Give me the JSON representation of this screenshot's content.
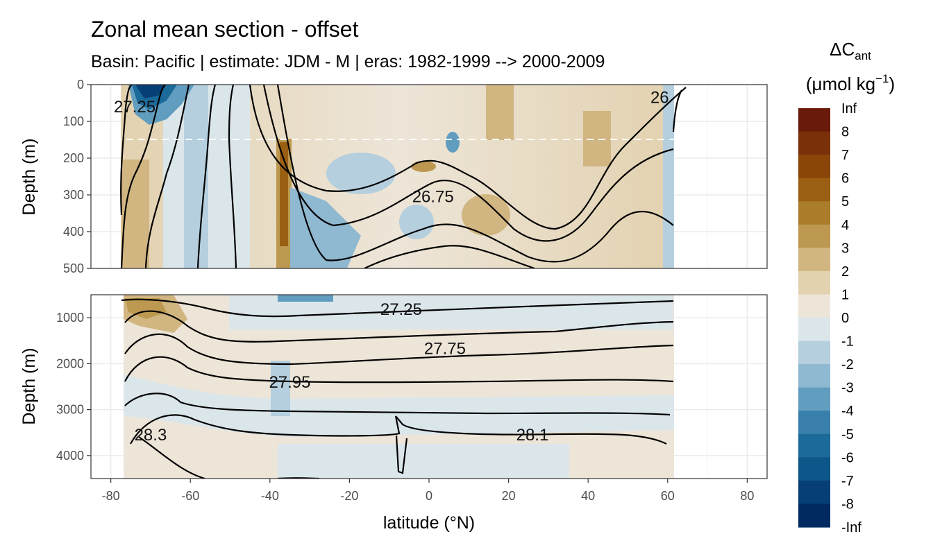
{
  "chart_data": {
    "type": "heatmap",
    "title": "Zonal mean section - offset",
    "subtitle": "Basin: Pacific | estimate: JDM - M | eras: 1982-1999 --> 2000-2009",
    "xlabel": "latitude (°N)",
    "ylabel": "Depth (m)",
    "xlim": [
      -85,
      85
    ],
    "x_ticks": [
      -80,
      -60,
      -40,
      -20,
      0,
      20,
      40,
      60,
      80
    ],
    "x_tick_labels": [
      "-80",
      "-60",
      "-40",
      "-20",
      "0",
      "20",
      "40",
      "60",
      "80"
    ],
    "panels": [
      {
        "name": "upper",
        "depth_range": [
          0,
          500
        ],
        "y_ticks": [
          0,
          100,
          200,
          300,
          400,
          500
        ],
        "y_tick_labels": [
          "0",
          "100",
          "200",
          "300",
          "400",
          "500"
        ],
        "reference_depth_dashed": 150,
        "isopycnal_labels": [
          {
            "text": "27.25",
            "lat": -74,
            "depth": 60
          },
          {
            "text": "26",
            "lat": 58,
            "depth": 35
          },
          {
            "text": "26.75",
            "lat": 1,
            "depth": 305
          }
        ]
      },
      {
        "name": "lower",
        "depth_range": [
          500,
          4500
        ],
        "y_ticks": [
          1000,
          2000,
          3000,
          4000
        ],
        "y_tick_labels": [
          "1000",
          "2000",
          "3000",
          "4000"
        ],
        "isopycnal_labels": [
          {
            "text": "27.25",
            "lat": -7,
            "depth": 820
          },
          {
            "text": "27.75",
            "lat": 4,
            "depth": 1670
          },
          {
            "text": "27.95",
            "lat": -35,
            "depth": 2400
          },
          {
            "text": "28.3",
            "lat": -70,
            "depth": 3550
          },
          {
            "text": "28.1",
            "lat": 26,
            "depth": 3550
          }
        ]
      }
    ],
    "legend": {
      "title_main": "ΔC",
      "title_sub": "ant",
      "unit_prefix": "(μmol kg",
      "unit_sup": "−1",
      "unit_suffix": ")",
      "position": "right",
      "labels": [
        "Inf",
        "8",
        "7",
        "6",
        "5",
        "4",
        "3",
        "2",
        "1",
        "0",
        "-1",
        "-2",
        "-3",
        "-4",
        "-5",
        "-6",
        "-7",
        "-8",
        "-Inf"
      ],
      "colors": [
        "#6a1a0a",
        "#7a3008",
        "#8a4508",
        "#9a5f12",
        "#ab7c2a",
        "#bd9850",
        "#d1b682",
        "#e3d2b0",
        "#ede5d8",
        "#dbe6eb",
        "#b5cfdf",
        "#8fb8d1",
        "#619dbf",
        "#3880ab",
        "#1b6a9a",
        "#0d5689",
        "#063e76",
        "#022a62",
        "#01174e"
      ]
    }
  }
}
